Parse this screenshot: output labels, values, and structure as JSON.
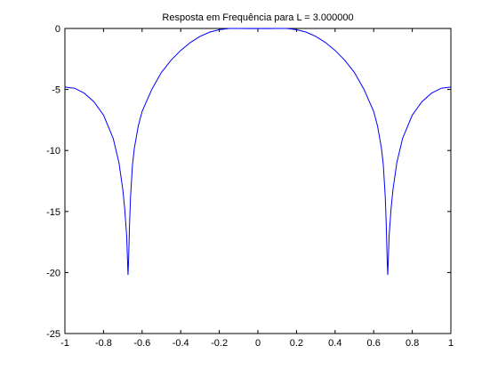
{
  "chart_data": {
    "type": "line",
    "title": "Resposta em Frequência para L = 3.000000",
    "xlabel": "",
    "ylabel": "",
    "xlim": [
      -1,
      1
    ],
    "ylim": [
      -25,
      0
    ],
    "grid": false,
    "x_ticks": [
      -1,
      -0.8,
      -0.6,
      -0.4,
      -0.2,
      0,
      0.2,
      0.4,
      0.6,
      0.8,
      1
    ],
    "x_tick_labels": [
      "-1",
      "-0.8",
      "-0.6",
      "-0.4",
      "-0.2",
      "0",
      "0.2",
      "0.4",
      "0.6",
      "0.8",
      "1"
    ],
    "y_ticks": [
      0,
      -5,
      -10,
      -15,
      -20,
      -25
    ],
    "y_tick_labels": [
      "0",
      "-5",
      "-10",
      "-15",
      "-20",
      "-25"
    ],
    "series": [
      {
        "color": "#0000ff",
        "x": [
          -1.0,
          -0.95,
          -0.9,
          -0.85,
          -0.8,
          -0.75,
          -0.72,
          -0.7,
          -0.69,
          -0.68,
          -0.673,
          -0.67,
          -0.665,
          -0.66,
          -0.65,
          -0.64,
          -0.62,
          -0.6,
          -0.55,
          -0.5,
          -0.45,
          -0.4,
          -0.35,
          -0.3,
          -0.25,
          -0.2,
          -0.15,
          -0.1,
          -0.05,
          0.0,
          0.05,
          0.1,
          0.15,
          0.2,
          0.25,
          0.3,
          0.35,
          0.4,
          0.45,
          0.5,
          0.55,
          0.6,
          0.62,
          0.64,
          0.65,
          0.66,
          0.665,
          0.67,
          0.673,
          0.68,
          0.69,
          0.7,
          0.72,
          0.75,
          0.8,
          0.85,
          0.9,
          0.95,
          1.0
        ],
        "y": [
          -4.8,
          -4.9,
          -5.3,
          -6.0,
          -7.1,
          -9.0,
          -11.0,
          -13.2,
          -14.8,
          -17.0,
          -20.2,
          -19.0,
          -16.0,
          -13.8,
          -11.2,
          -9.8,
          -8.0,
          -6.8,
          -5.0,
          -3.6,
          -2.6,
          -1.8,
          -1.15,
          -0.65,
          -0.3,
          -0.1,
          0.0,
          0.0,
          -0.01,
          -0.0,
          -0.01,
          0.0,
          0.0,
          -0.1,
          -0.3,
          -0.65,
          -1.15,
          -1.8,
          -2.6,
          -3.6,
          -5.0,
          -6.8,
          -8.0,
          -9.8,
          -11.2,
          -13.8,
          -16.0,
          -19.0,
          -20.2,
          -17.0,
          -14.8,
          -13.2,
          -11.0,
          -9.0,
          -7.1,
          -6.0,
          -5.3,
          -4.9,
          -4.8
        ]
      }
    ]
  }
}
